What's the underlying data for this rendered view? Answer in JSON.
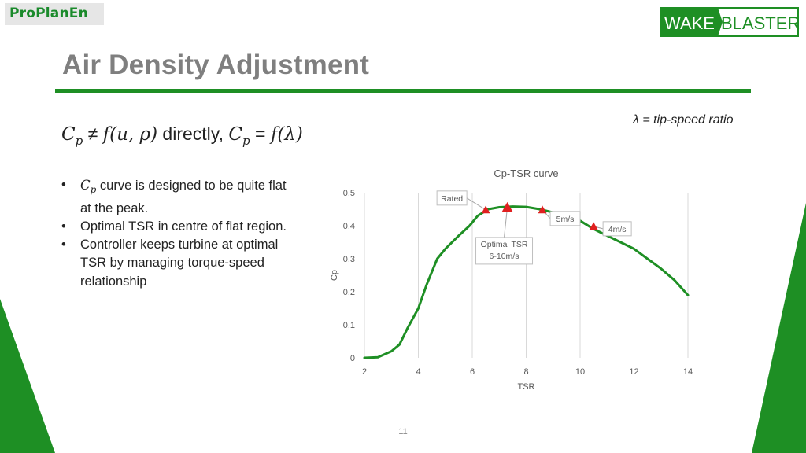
{
  "brand": {
    "left_logo_text": "ProPlanEn",
    "right_logo_part1": "WAKE",
    "right_logo_part2": "BLASTER",
    "green": "#1e8f24"
  },
  "slide": {
    "title": "Air Density Adjustment",
    "lambda_note": "λ = tip-speed ratio",
    "equation": {
      "cp1": "C",
      "p1": "p",
      "neq": " ≠ ",
      "func": "f(u, ρ)",
      "directly": " directly, ",
      "cp2": "C",
      "p2": "p",
      "eq": " = ",
      "func2": "f(λ)"
    },
    "bullets": [
      {
        "sym": "C",
        "sub": "p",
        "text": " curve is designed to be quite flat at the peak."
      },
      {
        "text": "Optimal TSR in centre of flat region."
      },
      {
        "text": "Controller keeps turbine at optimal TSR by managing torque-speed relationship"
      }
    ],
    "page_number": "11"
  },
  "chart_data": {
    "type": "line",
    "title": "Cp-TSR curve",
    "xlabel": "TSR",
    "ylabel": "Cp",
    "xlim": [
      2,
      14
    ],
    "ylim": [
      0,
      0.5
    ],
    "xticks": [
      2,
      4,
      6,
      8,
      10,
      12,
      14
    ],
    "yticks": [
      0,
      0.1,
      0.2,
      0.3,
      0.4,
      0.5
    ],
    "grid": "vertical",
    "line_color": "#1e8f24",
    "marker_color": "#e02020",
    "series": [
      {
        "x": [
          2,
          2.5,
          3,
          3.3,
          3.6,
          4,
          4.3,
          4.7,
          5,
          5.5,
          5.9,
          6.2,
          6.6,
          7,
          7.5,
          8,
          8.5,
          9,
          9.5,
          10,
          10.5,
          11,
          11.5,
          12,
          12.5,
          13,
          13.5,
          14
        ],
        "y": [
          0,
          0.002,
          0.02,
          0.04,
          0.09,
          0.15,
          0.22,
          0.3,
          0.33,
          0.37,
          0.4,
          0.43,
          0.45,
          0.456,
          0.458,
          0.457,
          0.45,
          0.44,
          0.43,
          0.415,
          0.39,
          0.37,
          0.35,
          0.33,
          0.3,
          0.27,
          0.235,
          0.19
        ]
      }
    ],
    "markers": [
      {
        "x": 6.5,
        "y": 0.448
      },
      {
        "x": 7.3,
        "y": 0.455
      },
      {
        "x": 8.6,
        "y": 0.448
      },
      {
        "x": 10.5,
        "y": 0.398
      }
    ],
    "annotations": [
      {
        "text": "Rated",
        "lines": [
          "Rated"
        ],
        "target": 0
      },
      {
        "text": "5m/s",
        "lines": [
          "5m/s"
        ],
        "target": 2
      },
      {
        "text": "4m/s",
        "lines": [
          "4m/s"
        ],
        "target": 3
      },
      {
        "text": "Optimal TSR 6-10m/s",
        "lines": [
          "Optimal TSR",
          "6-10m/s"
        ],
        "target": 1
      }
    ]
  }
}
